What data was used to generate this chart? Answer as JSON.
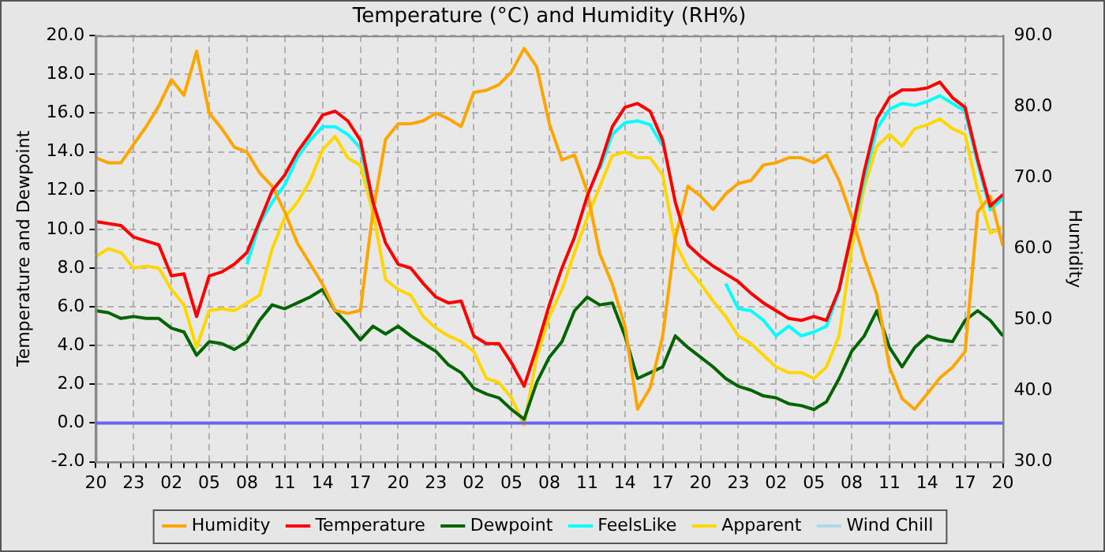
{
  "chart_data": {
    "type": "line",
    "title": "Temperature (°C) and Humidity (RH%)",
    "ylabel": "Temperature and Dewpoint",
    "y2label": "Humidity",
    "categories": [
      "20",
      null,
      null,
      "23",
      null,
      null,
      "02",
      null,
      null,
      "05",
      null,
      null,
      "08",
      null,
      null,
      "11",
      null,
      null,
      "14",
      null,
      null,
      "17",
      null,
      null,
      "20",
      null,
      null,
      "23",
      null,
      null,
      "02",
      null,
      null,
      "05",
      null,
      null,
      "08",
      null,
      null,
      "11",
      null,
      null,
      "14",
      null,
      null,
      "17",
      null,
      null,
      "20",
      null,
      null,
      "23",
      null,
      null,
      "02",
      null,
      null,
      "05",
      null,
      null,
      "08",
      null,
      null,
      "11",
      null,
      null,
      "14",
      null,
      null,
      "17",
      null,
      null,
      "20"
    ],
    "ylim": [
      -2,
      20
    ],
    "yticks": [
      {
        "value": -2,
        "label": "-2.0"
      },
      {
        "value": 0,
        "label": "0.0"
      },
      {
        "value": 2,
        "label": "2.0"
      },
      {
        "value": 4,
        "label": "4.0"
      },
      {
        "value": 6,
        "label": "6.0"
      },
      {
        "value": 8,
        "label": "8.0"
      },
      {
        "value": 10,
        "label": "10.0"
      },
      {
        "value": 12,
        "label": "12.0"
      },
      {
        "value": 14,
        "label": "14.0"
      },
      {
        "value": 16,
        "label": "16.0"
      },
      {
        "value": 18,
        "label": "18.0"
      },
      {
        "value": 20,
        "label": "20.0"
      }
    ],
    "y2lim": [
      30,
      90
    ],
    "y2ticks": [
      {
        "value": 30,
        "label": "30.0"
      },
      {
        "value": 40,
        "label": "40.0"
      },
      {
        "value": 50,
        "label": "50.0"
      },
      {
        "value": 60,
        "label": "60.0"
      },
      {
        "value": 70,
        "label": "70.0"
      },
      {
        "value": 80,
        "label": "80.0"
      },
      {
        "value": 90,
        "label": "90.0"
      }
    ],
    "grid": true,
    "legend": "bottom",
    "marker": "none",
    "line_style": "solid",
    "ref_lines": [
      {
        "axis": "y",
        "value": 0,
        "color": "#6666ee"
      }
    ],
    "series": [
      {
        "name": "Humidity",
        "color": "#ffa500",
        "axis": "y2",
        "values": [
          72.8,
          72.1,
          72.1,
          74.7,
          77.2,
          80.1,
          83.8,
          81.6,
          87.8,
          79.1,
          76.9,
          74.3,
          73.6,
          70.7,
          68.8,
          65.2,
          60.8,
          57.9,
          55.0,
          51.3,
          50.9,
          51.3,
          65.2,
          75.4,
          77.6,
          77.6,
          78.0,
          79.1,
          78.3,
          77.2,
          82.0,
          82.3,
          83.1,
          84.9,
          88.2,
          85.6,
          77.6,
          72.5,
          73.2,
          68.1,
          59.3,
          55.0,
          49.1,
          37.4,
          40.4,
          47.7,
          61.5,
          68.8,
          67.4,
          65.5,
          67.7,
          69.2,
          69.6,
          71.8,
          72.1,
          72.8,
          72.8,
          72.1,
          73.2,
          69.6,
          64.5,
          58.6,
          53.5,
          43.3,
          38.9,
          37.4,
          39.6,
          41.8,
          43.3,
          45.5,
          65.2,
          67.4,
          60.4
        ]
      },
      {
        "name": "Temperature",
        "color": "#ff0000",
        "values": [
          10.4,
          10.3,
          10.2,
          9.6,
          9.4,
          9.2,
          7.6,
          7.7,
          5.5,
          7.6,
          7.8,
          8.2,
          8.8,
          10.4,
          12.0,
          12.8,
          14.0,
          14.9,
          15.9,
          16.1,
          15.6,
          14.6,
          11.4,
          9.3,
          8.2,
          8.0,
          7.2,
          6.5,
          6.2,
          6.3,
          4.5,
          4.1,
          4.1,
          3.1,
          1.9,
          3.9,
          6.1,
          8.0,
          9.6,
          11.7,
          13.3,
          15.3,
          16.3,
          16.5,
          16.1,
          14.6,
          11.4,
          9.2,
          8.6,
          8.1,
          7.7,
          7.3,
          6.7,
          6.2,
          5.8,
          5.4,
          5.3,
          5.5,
          5.3,
          6.9,
          9.8,
          13.0,
          15.7,
          16.8,
          17.2,
          17.2,
          17.3,
          17.6,
          16.8,
          16.3,
          13.6,
          11.2,
          11.8
        ]
      },
      {
        "name": "Dewpoint",
        "color": "#006400",
        "values": [
          5.8,
          5.7,
          5.4,
          5.5,
          5.4,
          5.4,
          4.9,
          4.7,
          3.5,
          4.2,
          4.1,
          3.8,
          4.2,
          5.3,
          6.1,
          5.9,
          6.2,
          6.5,
          6.9,
          5.8,
          5.1,
          4.3,
          5.0,
          4.6,
          5.0,
          4.5,
          4.1,
          3.7,
          3.0,
          2.6,
          1.8,
          1.5,
          1.3,
          0.7,
          0.2,
          2.1,
          3.4,
          4.2,
          5.8,
          6.5,
          6.1,
          6.2,
          4.5,
          2.3,
          2.6,
          2.9,
          4.5,
          3.9,
          3.4,
          2.9,
          2.3,
          1.9,
          1.7,
          1.4,
          1.3,
          1.0,
          0.9,
          0.7,
          1.1,
          2.3,
          3.7,
          4.5,
          5.8,
          3.9,
          2.9,
          3.9,
          4.5,
          4.3,
          4.2,
          5.3,
          5.8,
          5.3,
          4.5
        ]
      },
      {
        "name": "FeelsLike",
        "color": "#00ffff",
        "values": [
          null,
          null,
          null,
          null,
          null,
          null,
          null,
          null,
          null,
          null,
          null,
          null,
          8.2,
          10.3,
          11.4,
          12.3,
          13.7,
          14.6,
          15.3,
          15.3,
          14.9,
          14.2,
          11.3,
          null,
          null,
          null,
          null,
          null,
          null,
          null,
          null,
          null,
          null,
          null,
          null,
          null,
          null,
          null,
          null,
          null,
          13.1,
          14.9,
          15.5,
          15.6,
          15.4,
          14.3,
          null,
          null,
          null,
          null,
          7.2,
          5.9,
          5.8,
          5.3,
          4.5,
          5.0,
          4.5,
          4.7,
          5.0,
          6.8,
          9.7,
          12.6,
          15.2,
          16.2,
          16.5,
          16.4,
          16.6,
          16.9,
          16.5,
          16.1,
          13.4,
          11.0,
          11.6
        ]
      },
      {
        "name": "Apparent",
        "color": "#ffd700",
        "values": [
          8.6,
          9.0,
          8.8,
          8.0,
          8.1,
          8.0,
          6.9,
          6.1,
          3.9,
          5.8,
          5.9,
          5.8,
          6.2,
          6.6,
          9.0,
          10.6,
          11.4,
          12.5,
          14.1,
          14.8,
          13.7,
          13.3,
          10.9,
          7.4,
          6.9,
          6.6,
          5.5,
          4.9,
          4.5,
          4.2,
          3.7,
          2.3,
          2.1,
          1.3,
          -0.1,
          3.4,
          5.5,
          6.9,
          8.8,
          10.6,
          12.2,
          13.8,
          14.0,
          13.7,
          13.7,
          12.8,
          9.3,
          8.0,
          7.2,
          6.3,
          5.5,
          4.5,
          4.1,
          3.5,
          2.9,
          2.6,
          2.6,
          2.3,
          2.9,
          4.5,
          9.0,
          12.2,
          14.3,
          14.9,
          14.3,
          15.2,
          15.4,
          15.7,
          15.2,
          14.9,
          12.0,
          9.8,
          10.1
        ]
      },
      {
        "name": "Wind Chill",
        "color": "#add8e6",
        "values": [
          null,
          null,
          null,
          null,
          null,
          null,
          null,
          null,
          null,
          null,
          null,
          null,
          null,
          null,
          null,
          null,
          null,
          null,
          null,
          null,
          null,
          null,
          null,
          null,
          null,
          null,
          null,
          null,
          null,
          null,
          null,
          null,
          null,
          null,
          null,
          null,
          null,
          null,
          null,
          null,
          null,
          null,
          null,
          null,
          null,
          null,
          null,
          null,
          null,
          null,
          null,
          null,
          null,
          null,
          null,
          null,
          null,
          null,
          null,
          null,
          null,
          null,
          null,
          null,
          null,
          null,
          null,
          null,
          null,
          null,
          null,
          null,
          null
        ]
      }
    ]
  }
}
